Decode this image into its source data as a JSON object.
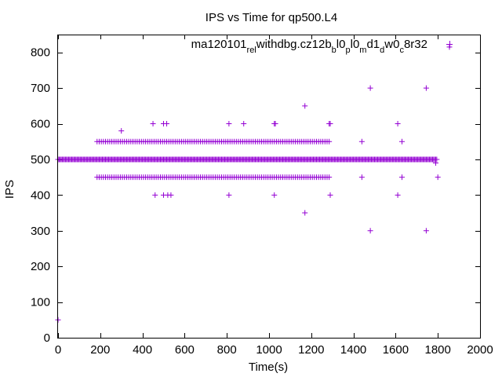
{
  "chart_data": {
    "type": "scatter",
    "title": "IPS vs Time for qp500.L4",
    "xlabel": "Time(s)",
    "ylabel": "IPS",
    "xlim": [
      0,
      2000
    ],
    "ylim": [
      0,
      850
    ],
    "xticks": [
      0,
      200,
      400,
      600,
      800,
      1000,
      1200,
      1400,
      1600,
      1800,
      2000
    ],
    "yticks": [
      0,
      100,
      200,
      300,
      400,
      500,
      600,
      700,
      800
    ],
    "grid": false,
    "marker": "plus",
    "color": "#9400d3",
    "series": [
      {
        "name": "ma120101_rel_withdbg.cz12b_bl0_pl0_md1_dw0_c8r32",
        "legend_parts": [
          {
            "text": "ma120101",
            "sub": false
          },
          {
            "text": "rel",
            "sub": true
          },
          {
            "text": "withdbg.cz12b",
            "sub": false
          },
          {
            "text": "b",
            "sub": true
          },
          {
            "text": "l0",
            "sub": false
          },
          {
            "text": "p",
            "sub": true
          },
          {
            "text": "l0",
            "sub": false
          },
          {
            "text": "m",
            "sub": true
          },
          {
            "text": "d1",
            "sub": false
          },
          {
            "text": "d",
            "sub": true
          },
          {
            "text": "w0",
            "sub": false
          },
          {
            "text": "c",
            "sub": true
          },
          {
            "text": "8r32",
            "sub": false
          }
        ],
        "dense_runs": [
          {
            "y": 500,
            "x_start": 0,
            "x_end": 1795,
            "step": 5
          },
          {
            "y": 550,
            "x_start": 185,
            "x_end": 1290,
            "step": 10
          },
          {
            "y": 450,
            "x_start": 185,
            "x_end": 1290,
            "step": 10
          }
        ],
        "points": [
          {
            "x": 0,
            "y": 50
          },
          {
            "x": 300,
            "y": 580
          },
          {
            "x": 450,
            "y": 600
          },
          {
            "x": 500,
            "y": 600
          },
          {
            "x": 515,
            "y": 600
          },
          {
            "x": 810,
            "y": 600
          },
          {
            "x": 880,
            "y": 600
          },
          {
            "x": 1025,
            "y": 600
          },
          {
            "x": 1030,
            "y": 600
          },
          {
            "x": 1285,
            "y": 600
          },
          {
            "x": 1290,
            "y": 600
          },
          {
            "x": 1610,
            "y": 600
          },
          {
            "x": 1170,
            "y": 650
          },
          {
            "x": 1480,
            "y": 700
          },
          {
            "x": 1745,
            "y": 700
          },
          {
            "x": 1855,
            "y": 815
          },
          {
            "x": 1440,
            "y": 550
          },
          {
            "x": 1630,
            "y": 550
          },
          {
            "x": 1440,
            "y": 450
          },
          {
            "x": 1630,
            "y": 450
          },
          {
            "x": 1800,
            "y": 450
          },
          {
            "x": 1790,
            "y": 490
          },
          {
            "x": 460,
            "y": 400
          },
          {
            "x": 500,
            "y": 400
          },
          {
            "x": 520,
            "y": 400
          },
          {
            "x": 535,
            "y": 400
          },
          {
            "x": 810,
            "y": 400
          },
          {
            "x": 1025,
            "y": 400
          },
          {
            "x": 1290,
            "y": 400
          },
          {
            "x": 1610,
            "y": 400
          },
          {
            "x": 1170,
            "y": 350
          },
          {
            "x": 1480,
            "y": 300
          },
          {
            "x": 1745,
            "y": 300
          }
        ]
      }
    ]
  }
}
